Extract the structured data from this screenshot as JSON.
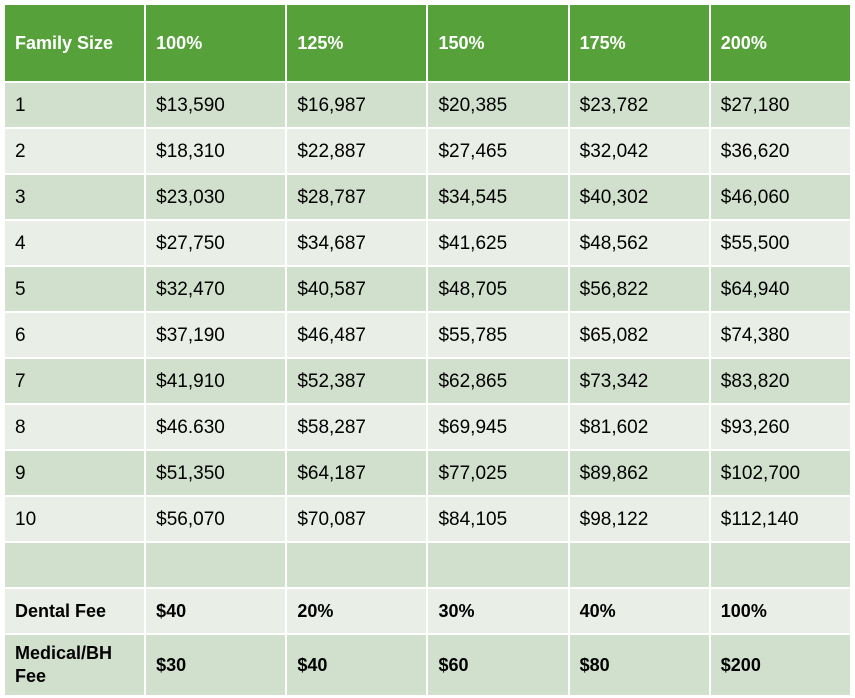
{
  "table": {
    "headers": [
      "Family Size",
      "100%",
      "125%",
      "150%",
      "175%",
      "200%"
    ],
    "rows": [
      [
        "1",
        "$13,590",
        "$16,987",
        "$20,385",
        "$23,782",
        "$27,180"
      ],
      [
        "2",
        "$18,310",
        "$22,887",
        "$27,465",
        "$32,042",
        "$36,620"
      ],
      [
        "3",
        "$23,030",
        "$28,787",
        "$34,545",
        "$40,302",
        "$46,060"
      ],
      [
        "4",
        "$27,750",
        "$34,687",
        "$41,625",
        "$48,562",
        "$55,500"
      ],
      [
        "5",
        "$32,470",
        "$40,587",
        "$48,705",
        "$56,822",
        "$64,940"
      ],
      [
        "6",
        "$37,190",
        "$46,487",
        "$55,785",
        "$65,082",
        "$74,380"
      ],
      [
        "7",
        "$41,910",
        "$52,387",
        "$62,865",
        "$73,342",
        "$83,820"
      ],
      [
        "8",
        "$46.630",
        "$58,287",
        "$69,945",
        "$81,602",
        "$93,260"
      ],
      [
        "9",
        "$51,350",
        "$64,187",
        "$77,025",
        "$89,862",
        "$102,700"
      ],
      [
        "10",
        "$56,070",
        "$70,087",
        "$84,105",
        "$98,122",
        "$112,140"
      ]
    ],
    "empty_row": [
      "",
      "",
      "",
      "",
      "",
      ""
    ],
    "dental_fee": [
      "Dental Fee",
      "$40",
      "20%",
      "30%",
      "40%",
      "100%"
    ],
    "medical_fee": [
      "Medical/BH Fee",
      "$30",
      "$40",
      "$60",
      "$80",
      "$200"
    ]
  },
  "colors": {
    "header_bg": "#56a13a",
    "row_dark": "#d1e0cd",
    "row_light": "#e9efe7"
  }
}
